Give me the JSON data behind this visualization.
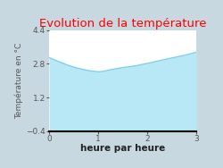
{
  "title": "Evolution de la température",
  "title_color": "#ff0000",
  "xlabel": "heure par heure",
  "ylabel": "Température en °C",
  "xlim": [
    0,
    3
  ],
  "ylim": [
    -0.4,
    4.4
  ],
  "xticks": [
    0,
    1,
    2,
    3
  ],
  "yticks": [
    -0.4,
    1.2,
    2.8,
    4.4
  ],
  "x": [
    0,
    0.2,
    0.4,
    0.6,
    0.8,
    1.0,
    1.1,
    1.25,
    1.5,
    1.75,
    2.0,
    2.25,
    2.5,
    2.75,
    3.0
  ],
  "y": [
    3.1,
    2.9,
    2.72,
    2.58,
    2.48,
    2.42,
    2.44,
    2.52,
    2.62,
    2.7,
    2.82,
    2.95,
    3.08,
    3.2,
    3.35
  ],
  "line_color": "#7ecfe8",
  "fill_color": "#b8e8f5",
  "fill_alpha": 1.0,
  "figure_bg": "#c8d8e0",
  "plot_bg": "#ffffff",
  "right_panel_bg": "#c8d8e0",
  "grid_color": "#dddddd",
  "baseline_y": -0.4,
  "title_fontsize": 9.5,
  "xlabel_fontsize": 7.5,
  "ylabel_fontsize": 6.5,
  "tick_fontsize": 6.5,
  "linewidth": 1.0
}
